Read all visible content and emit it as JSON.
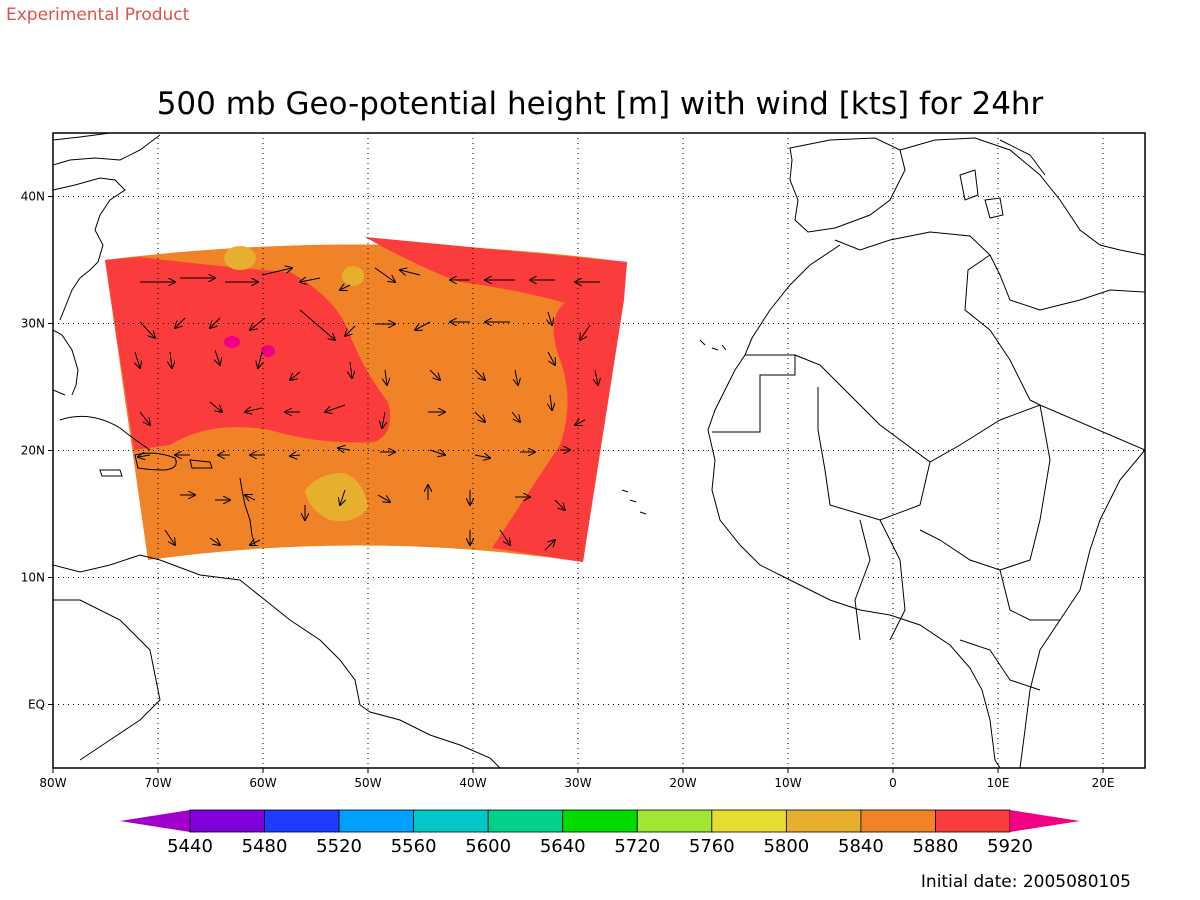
{
  "header": {
    "product_tag": "Experimental Product",
    "title": "500 mb Geo-potential height [m] with wind [kts] for 24hr"
  },
  "map": {
    "lon_range": [
      -80,
      24
    ],
    "lat_range": [
      -5,
      45
    ],
    "lon_ticks": [
      {
        "value": -80,
        "label": "80W"
      },
      {
        "value": -70,
        "label": "70W"
      },
      {
        "value": -60,
        "label": "60W"
      },
      {
        "value": -50,
        "label": "50W"
      },
      {
        "value": -40,
        "label": "40W"
      },
      {
        "value": -30,
        "label": "30W"
      },
      {
        "value": -20,
        "label": "20W"
      },
      {
        "value": -10,
        "label": "10W"
      },
      {
        "value": 0,
        "label": "0"
      },
      {
        "value": 10,
        "label": "10E"
      },
      {
        "value": 20,
        "label": "20E"
      }
    ],
    "lat_ticks": [
      {
        "value": 40,
        "label": "40N"
      },
      {
        "value": 30,
        "label": "30N"
      },
      {
        "value": 20,
        "label": "20N"
      },
      {
        "value": 10,
        "label": "10N"
      },
      {
        "value": 0,
        "label": "EQ"
      }
    ],
    "grid": true,
    "grid_style": "dotted"
  },
  "colorbar": {
    "colors": [
      "#a000c8",
      "#8200dc",
      "#1e3cff",
      "#00a0ff",
      "#00c8c8",
      "#00d28c",
      "#00dc00",
      "#a0e632",
      "#e6dc32",
      "#e6af2d",
      "#f08228",
      "#fa3c3c",
      "#f00082"
    ],
    "labels": [
      "5440",
      "5480",
      "5520",
      "5560",
      "5600",
      "5640",
      "5720",
      "5760",
      "5800",
      "5840",
      "5880",
      "5920"
    ]
  },
  "footer": {
    "initial_date": "Initial date: 2005080105"
  },
  "colors": {
    "orange_5840": "#f08228",
    "red_5880": "#fa3c3c",
    "gold_5800": "#e6af2d",
    "magenta_5920": "#f00082",
    "product_tag": "#e0504a"
  }
}
